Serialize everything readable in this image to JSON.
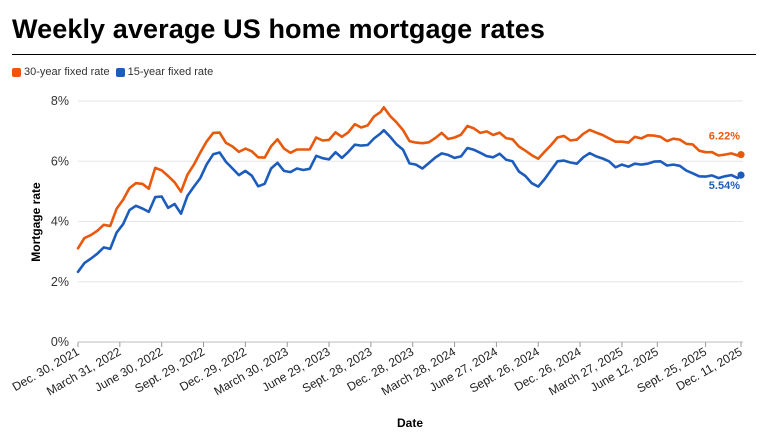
{
  "chart_data": {
    "type": "line",
    "title": "Weekly average US home mortgage rates",
    "xlabel": "Date",
    "ylabel": "Mortgage rate",
    "ylim": [
      0,
      8
    ],
    "y_ticks": [
      "0%",
      "2%",
      "4%",
      "6%",
      "8%"
    ],
    "grid": true,
    "legend_position": "top-left",
    "x_ticks": [
      "Dec. 30, 2021",
      "March 31, 2022",
      "June 30, 2022",
      "Sept. 29, 2022",
      "Dec. 29, 2022",
      "March 30, 2023",
      "June 29, 2023",
      "Sept. 28, 2023",
      "Dec. 28, 2023",
      "March 28, 2024",
      "June 27, 2024",
      "Sept. 26, 2024",
      "Dec. 26, 2024",
      "March 27, 2025",
      "June 12, 2025",
      "Sept. 25, 2025",
      "Dec. 11, 2025"
    ],
    "x": [
      "2021-12-30",
      "2022-01-13",
      "2022-01-27",
      "2022-02-10",
      "2022-02-24",
      "2022-03-10",
      "2022-03-24",
      "2022-04-07",
      "2022-04-21",
      "2022-05-05",
      "2022-05-19",
      "2022-06-02",
      "2022-06-16",
      "2022-06-30",
      "2022-07-14",
      "2022-07-28",
      "2022-08-11",
      "2022-08-25",
      "2022-09-08",
      "2022-09-22",
      "2022-10-06",
      "2022-10-20",
      "2022-11-03",
      "2022-11-17",
      "2022-12-01",
      "2022-12-15",
      "2022-12-29",
      "2023-01-12",
      "2023-01-26",
      "2023-02-09",
      "2023-02-23",
      "2023-03-09",
      "2023-03-23",
      "2023-04-06",
      "2023-04-20",
      "2023-05-04",
      "2023-05-18",
      "2023-06-01",
      "2023-06-15",
      "2023-06-29",
      "2023-07-13",
      "2023-07-27",
      "2023-08-10",
      "2023-08-24",
      "2023-09-07",
      "2023-09-21",
      "2023-10-05",
      "2023-10-19",
      "2023-10-26",
      "2023-11-09",
      "2023-11-23",
      "2023-12-07",
      "2023-12-21",
      "2024-01-04",
      "2024-01-18",
      "2024-02-01",
      "2024-02-15",
      "2024-02-29",
      "2024-03-14",
      "2024-03-28",
      "2024-04-11",
      "2024-04-25",
      "2024-05-09",
      "2024-05-23",
      "2024-06-06",
      "2024-06-20",
      "2024-07-04",
      "2024-07-18",
      "2024-08-01",
      "2024-08-15",
      "2024-08-29",
      "2024-09-12",
      "2024-09-26",
      "2024-10-10",
      "2024-10-24",
      "2024-11-07",
      "2024-11-21",
      "2024-12-05",
      "2024-12-19",
      "2025-01-02",
      "2025-01-16",
      "2025-01-30",
      "2025-02-13",
      "2025-02-27",
      "2025-03-13",
      "2025-03-27",
      "2025-04-10",
      "2025-04-24",
      "2025-05-08",
      "2025-05-22",
      "2025-06-05",
      "2025-06-19",
      "2025-07-03",
      "2025-07-17",
      "2025-07-31",
      "2025-08-14",
      "2025-08-28",
      "2025-09-11",
      "2025-09-25",
      "2025-10-09",
      "2025-10-23",
      "2025-11-06",
      "2025-11-20",
      "2025-12-04",
      "2025-12-11"
    ],
    "series": [
      {
        "name": "30-year fixed rate",
        "color": "#e8590c",
        "end_label": "6.22%",
        "values": [
          3.11,
          3.45,
          3.55,
          3.69,
          3.89,
          3.85,
          4.42,
          4.72,
          5.11,
          5.27,
          5.25,
          5.09,
          5.78,
          5.7,
          5.51,
          5.3,
          4.99,
          5.55,
          5.89,
          6.29,
          6.66,
          6.94,
          6.95,
          6.61,
          6.49,
          6.31,
          6.42,
          6.33,
          6.13,
          6.12,
          6.5,
          6.73,
          6.42,
          6.28,
          6.39,
          6.39,
          6.39,
          6.79,
          6.69,
          6.71,
          6.96,
          6.81,
          6.96,
          7.23,
          7.12,
          7.19,
          7.49,
          7.63,
          7.79,
          7.5,
          7.29,
          7.03,
          6.67,
          6.62,
          6.6,
          6.63,
          6.77,
          6.94,
          6.74,
          6.79,
          6.88,
          7.17,
          7.09,
          6.94,
          6.99,
          6.87,
          6.95,
          6.77,
          6.73,
          6.49,
          6.35,
          6.2,
          6.08,
          6.32,
          6.54,
          6.79,
          6.84,
          6.69,
          6.72,
          6.91,
          7.04,
          6.95,
          6.87,
          6.76,
          6.65,
          6.65,
          6.62,
          6.81,
          6.76,
          6.86,
          6.85,
          6.81,
          6.67,
          6.75,
          6.72,
          6.58,
          6.56,
          6.35,
          6.3,
          6.3,
          6.19,
          6.22,
          6.26,
          6.19,
          6.22
        ]
      },
      {
        "name": "15-year fixed rate",
        "color": "#1c5cbd",
        "end_label": "5.54%",
        "values": [
          2.33,
          2.62,
          2.77,
          2.93,
          3.14,
          3.09,
          3.63,
          3.91,
          4.38,
          4.52,
          4.43,
          4.32,
          4.81,
          4.83,
          4.45,
          4.58,
          4.26,
          4.85,
          5.16,
          5.44,
          5.9,
          6.23,
          6.29,
          5.98,
          5.76,
          5.54,
          5.68,
          5.52,
          5.17,
          5.25,
          5.76,
          5.95,
          5.68,
          5.64,
          5.76,
          5.71,
          5.75,
          6.18,
          6.1,
          6.06,
          6.3,
          6.11,
          6.31,
          6.55,
          6.52,
          6.54,
          6.76,
          6.92,
          7.03,
          6.81,
          6.56,
          6.38,
          5.93,
          5.89,
          5.76,
          5.94,
          6.12,
          6.26,
          6.21,
          6.11,
          6.16,
          6.44,
          6.38,
          6.28,
          6.17,
          6.13,
          6.25,
          6.05,
          6.0,
          5.66,
          5.51,
          5.27,
          5.16,
          5.41,
          5.71,
          6.0,
          6.02,
          5.96,
          5.92,
          6.13,
          6.27,
          6.16,
          6.09,
          6.0,
          5.8,
          5.89,
          5.82,
          5.92,
          5.89,
          5.92,
          5.99,
          6.0,
          5.86,
          5.89,
          5.85,
          5.69,
          5.6,
          5.5,
          5.49,
          5.53,
          5.44,
          5.5,
          5.54,
          5.44,
          5.54
        ]
      }
    ]
  }
}
